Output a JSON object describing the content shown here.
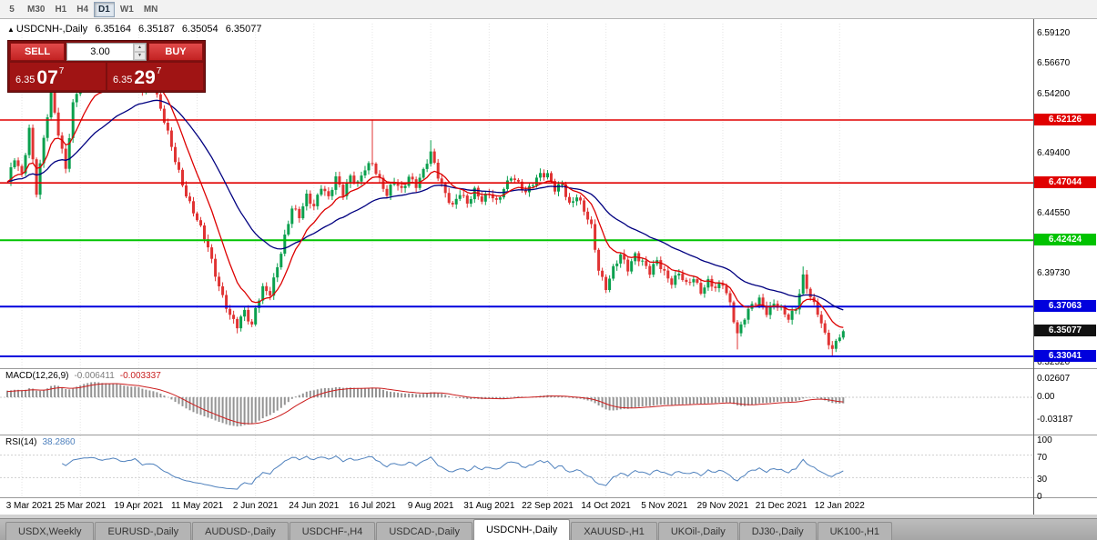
{
  "toolbar": {
    "timeframes": [
      {
        "label": "5",
        "active": false
      },
      {
        "label": "M30",
        "active": false
      },
      {
        "label": "H1",
        "active": false
      },
      {
        "label": "H4",
        "active": false
      },
      {
        "label": "D1",
        "active": true
      },
      {
        "label": "W1",
        "active": false
      },
      {
        "label": "MN",
        "active": false
      }
    ]
  },
  "icons": {
    "collapse_arrow": "▲",
    "spinner_up": "▲",
    "spinner_down": "▼"
  },
  "chart": {
    "header": {
      "title": "USDCNH-,Daily",
      "open": "6.35164",
      "high": "6.35187",
      "low": "6.35054",
      "close": "6.35077"
    },
    "trade_panel": {
      "sell_label": "SELL",
      "buy_label": "BUY",
      "volume": "3.00",
      "sell_price": {
        "prefix": "6.35",
        "big": "07",
        "sup": "7"
      },
      "buy_price": {
        "prefix": "6.35",
        "big": "29",
        "sup": "7"
      }
    },
    "y_axis_ticks": [
      {
        "label": "6.59120",
        "value": 6.5912
      },
      {
        "label": "6.56670",
        "value": 6.5667
      },
      {
        "label": "6.54200",
        "value": 6.542
      },
      {
        "label": "6.49400",
        "value": 6.494
      },
      {
        "label": "6.44550",
        "value": 6.4455
      },
      {
        "label": "6.39730",
        "value": 6.3973
      },
      {
        "label": "6.32520",
        "value": 6.3252
      }
    ],
    "current_price_badge": {
      "label": "6.35077",
      "value": 6.35077,
      "color": "#111111"
    }
  },
  "indicators": {
    "macd": {
      "name": "MACD(12,26,9)",
      "value_main": "-0.006411",
      "value_signal": "-0.003337",
      "ticks": [
        {
          "label": "0.02607",
          "value": 0.02607
        },
        {
          "label": "0.00",
          "value": 0
        },
        {
          "label": "-0.03187",
          "value": -0.03187
        }
      ],
      "histogram_color": "#949494",
      "signal_color": "#cc1f1f"
    },
    "rsi": {
      "name": "RSI(14)",
      "value": "38.2860",
      "ticks": [
        {
          "label": "100",
          "value": 100
        },
        {
          "label": "70",
          "value": 70
        },
        {
          "label": "30",
          "value": 30
        },
        {
          "label": "0",
          "value": 0
        }
      ],
      "levels": [
        70,
        30
      ],
      "line_color": "#4f81bd"
    }
  },
  "chart_data": {
    "type": "candlestick",
    "title": "USDCNH-,Daily",
    "symbol": "USDCNH-",
    "timeframe": "Daily",
    "ohlc_current": {
      "open": 6.35164,
      "high": 6.35187,
      "low": 6.35054,
      "close": 6.35077
    },
    "x_labels": [
      "3 Mar 2021",
      "25 Mar 2021",
      "19 Apr 2021",
      "11 May 2021",
      "2 Jun 2021",
      "24 Jun 2021",
      "16 Jul 2021",
      "9 Aug 2021",
      "31 Aug 2021",
      "22 Sep 2021",
      "14 Oct 2021",
      "5 Nov 2021",
      "29 Nov 2021",
      "21 Dec 2021",
      "12 Jan 2022"
    ],
    "x_label_day_index": [
      4,
      20,
      36,
      52,
      68,
      84,
      100,
      116,
      132,
      148,
      164,
      180,
      196,
      212,
      228
    ],
    "days": 229,
    "price_range_visible": [
      6.315,
      6.6
    ],
    "up_color": "#0aa04e",
    "down_color": "#e03333",
    "ma_fast": {
      "color": "#dd0000",
      "period": 11
    },
    "ma_slow": {
      "color": "#000080",
      "period": 35
    },
    "levels": [
      {
        "price": "6.52126",
        "value": 6.52126,
        "color": "#e00000",
        "width": 1.6
      },
      {
        "price": "6.47044",
        "value": 6.47044,
        "color": "#e00000",
        "width": 1.6
      },
      {
        "price": "6.42424",
        "value": 6.42424,
        "color": "#00c300",
        "width": 2
      },
      {
        "price": "6.37063",
        "value": 6.37063,
        "color": "#0000dd",
        "width": 2
      },
      {
        "price": "6.33041",
        "value": 6.33041,
        "color": "#0000dd",
        "width": 2
      }
    ],
    "close_anchors": [
      [
        0,
        6.47
      ],
      [
        2,
        6.49
      ],
      [
        4,
        6.478
      ],
      [
        6,
        6.515
      ],
      [
        8,
        6.462
      ],
      [
        10,
        6.505
      ],
      [
        12,
        6.545
      ],
      [
        14,
        6.512
      ],
      [
        16,
        6.482
      ],
      [
        18,
        6.532
      ],
      [
        20,
        6.552
      ],
      [
        23,
        6.565
      ],
      [
        26,
        6.548
      ],
      [
        29,
        6.565
      ],
      [
        32,
        6.552
      ],
      [
        35,
        6.565
      ],
      [
        37,
        6.545
      ],
      [
        40,
        6.552
      ],
      [
        43,
        6.52
      ],
      [
        46,
        6.488
      ],
      [
        49,
        6.462
      ],
      [
        52,
        6.44
      ],
      [
        55,
        6.418
      ],
      [
        58,
        6.388
      ],
      [
        61,
        6.362
      ],
      [
        63,
        6.354
      ],
      [
        65,
        6.368
      ],
      [
        67,
        6.356
      ],
      [
        68,
        6.37
      ],
      [
        70,
        6.384
      ],
      [
        72,
        6.38
      ],
      [
        74,
        6.404
      ],
      [
        76,
        6.428
      ],
      [
        78,
        6.45
      ],
      [
        80,
        6.442
      ],
      [
        82,
        6.46
      ],
      [
        84,
        6.453
      ],
      [
        86,
        6.468
      ],
      [
        88,
        6.457
      ],
      [
        90,
        6.474
      ],
      [
        92,
        6.463
      ],
      [
        94,
        6.477
      ],
      [
        96,
        6.469
      ],
      [
        98,
        6.481
      ],
      [
        100,
        6.487
      ],
      [
        102,
        6.474
      ],
      [
        104,
        6.461
      ],
      [
        106,
        6.471
      ],
      [
        108,
        6.464
      ],
      [
        110,
        6.477
      ],
      [
        112,
        6.469
      ],
      [
        114,
        6.479
      ],
      [
        116,
        6.494
      ],
      [
        118,
        6.477
      ],
      [
        120,
        6.463
      ],
      [
        122,
        6.451
      ],
      [
        124,
        6.461
      ],
      [
        126,
        6.454
      ],
      [
        128,
        6.466
      ],
      [
        130,
        6.457
      ],
      [
        132,
        6.461
      ],
      [
        134,
        6.454
      ],
      [
        136,
        6.467
      ],
      [
        138,
        6.477
      ],
      [
        140,
        6.469
      ],
      [
        142,
        6.461
      ],
      [
        144,
        6.471
      ],
      [
        146,
        6.479
      ],
      [
        148,
        6.477
      ],
      [
        150,
        6.464
      ],
      [
        152,
        6.469
      ],
      [
        154,
        6.454
      ],
      [
        156,
        6.461
      ],
      [
        158,
        6.447
      ],
      [
        160,
        6.434
      ],
      [
        162,
        6.401
      ],
      [
        164,
        6.387
      ],
      [
        166,
        6.401
      ],
      [
        168,
        6.411
      ],
      [
        170,
        6.401
      ],
      [
        172,
        6.414
      ],
      [
        174,
        6.407
      ],
      [
        176,
        6.397
      ],
      [
        178,
        6.407
      ],
      [
        180,
        6.399
      ],
      [
        182,
        6.391
      ],
      [
        184,
        6.397
      ],
      [
        186,
        6.387
      ],
      [
        188,
        6.394
      ],
      [
        190,
        6.384
      ],
      [
        192,
        6.391
      ],
      [
        194,
        6.384
      ],
      [
        196,
        6.389
      ],
      [
        198,
        6.374
      ],
      [
        200,
        6.349
      ],
      [
        202,
        6.361
      ],
      [
        204,
        6.371
      ],
      [
        206,
        6.377
      ],
      [
        208,
        6.367
      ],
      [
        210,
        6.373
      ],
      [
        212,
        6.367
      ],
      [
        214,
        6.361
      ],
      [
        216,
        6.371
      ],
      [
        218,
        6.395
      ],
      [
        220,
        6.377
      ],
      [
        222,
        6.365
      ],
      [
        224,
        6.349
      ],
      [
        226,
        6.337
      ],
      [
        228,
        6.347
      ],
      [
        229,
        6.35077
      ]
    ],
    "wick_events": [
      {
        "d": 12,
        "high": 6.556
      },
      {
        "d": 63,
        "low": 6.349
      },
      {
        "d": 100,
        "high": 6.521
      },
      {
        "d": 116,
        "high": 6.505
      },
      {
        "d": 200,
        "low": 6.336
      },
      {
        "d": 218,
        "high": 6.403
      },
      {
        "d": 226,
        "low": 6.331
      }
    ]
  },
  "tabs": [
    {
      "label": "USDX,Weekly",
      "active": false
    },
    {
      "label": "EURUSD-,Daily",
      "active": false
    },
    {
      "label": "AUDUSD-,Daily",
      "active": false
    },
    {
      "label": "USDCHF-,H4",
      "active": false
    },
    {
      "label": "USDCAD-,Daily",
      "active": false
    },
    {
      "label": "USDCNH-,Daily",
      "active": true
    },
    {
      "label": "XAUUSD-,H1",
      "active": false
    },
    {
      "label": "UKOil-,Daily",
      "active": false
    },
    {
      "label": "DJ30-,Daily",
      "active": false
    },
    {
      "label": "UK100-,H1",
      "active": false
    }
  ]
}
